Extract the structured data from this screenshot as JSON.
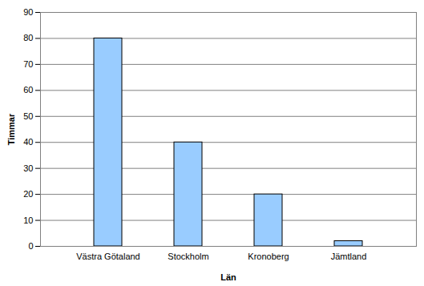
{
  "chart_data": {
    "type": "bar",
    "categories": [
      "Västra Götaland",
      "Stockholm",
      "Kronoberg",
      "Jämtland"
    ],
    "values": [
      80,
      40,
      20,
      2
    ],
    "color": "#99ccff",
    "xlabel": "Län",
    "ylabel": "Timmar",
    "ylim": [
      0,
      90
    ],
    "yticks": [
      0,
      10,
      20,
      30,
      40,
      50,
      60,
      70,
      80,
      90
    ],
    "grid": true
  }
}
